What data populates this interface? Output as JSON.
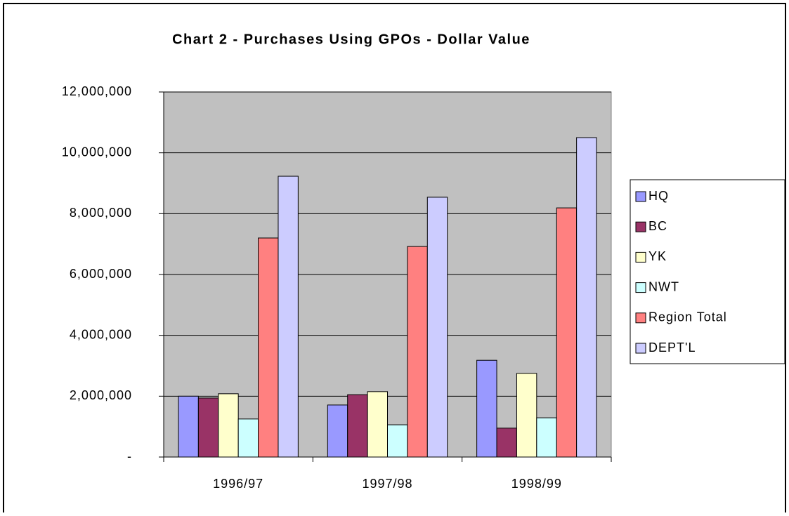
{
  "chart_data": {
    "type": "bar",
    "title": "Chart 2 - Purchases Using GPOs - Dollar Value",
    "categories": [
      "1996/97",
      "1997/98",
      "1998/99"
    ],
    "series": [
      {
        "name": "HQ",
        "color": "#9999ff",
        "values": [
          2000000,
          1710000,
          3180000
        ]
      },
      {
        "name": "BC",
        "color": "#993366",
        "values": [
          1940000,
          2050000,
          950000
        ]
      },
      {
        "name": "YK",
        "color": "#ffffcc",
        "values": [
          2080000,
          2150000,
          2750000
        ]
      },
      {
        "name": "NWT",
        "color": "#ccffff",
        "values": [
          1250000,
          1060000,
          1290000
        ]
      },
      {
        "name": "Region Total",
        "color": "#ff8080",
        "values": [
          7200000,
          6920000,
          8190000
        ]
      },
      {
        "name": "DEPT'L",
        "color": "#ccccff",
        "values": [
          9230000,
          8540000,
          10500000
        ]
      }
    ],
    "ylim": [
      0,
      12000000
    ],
    "yticks": [
      {
        "value": 0,
        "label": "-"
      },
      {
        "value": 2000000,
        "label": "2,000,000"
      },
      {
        "value": 4000000,
        "label": "4,000,000"
      },
      {
        "value": 6000000,
        "label": "6,000,000"
      },
      {
        "value": 8000000,
        "label": "8,000,000"
      },
      {
        "value": 10000000,
        "label": "10,000,000"
      },
      {
        "value": 12000000,
        "label": "12,000,000"
      }
    ],
    "grid": true,
    "legend": "right",
    "plot_background": "#c0c0c0"
  }
}
